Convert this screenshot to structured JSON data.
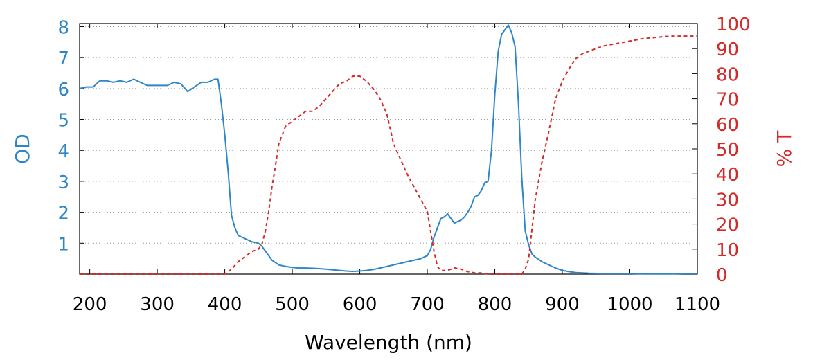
{
  "chart_data": {
    "type": "line",
    "xlabel": "Wavelength (nm)",
    "ylabel_left": "OD",
    "ylabel_right": "% T",
    "xlim": [
      185,
      1100
    ],
    "ylim_left": [
      0,
      8.1
    ],
    "ylim_right": [
      0,
      100
    ],
    "x_ticks": [
      200,
      300,
      400,
      500,
      600,
      700,
      800,
      900,
      1000,
      1100
    ],
    "x_tick_labels": [
      "200",
      "300",
      "400",
      "500",
      "600",
      "700",
      "800",
      "900",
      "1000",
      "1100"
    ],
    "y_left_ticks": [
      1,
      2,
      3,
      4,
      5,
      6,
      7,
      8
    ],
    "y_left_tick_labels": [
      "1",
      "2",
      "3",
      "4",
      "5",
      "6",
      "7",
      "8"
    ],
    "y_right_ticks": [
      0,
      10,
      20,
      30,
      40,
      50,
      60,
      70,
      80,
      90,
      100
    ],
    "y_right_tick_labels": [
      "0",
      "10",
      "20",
      "30",
      "40",
      "50",
      "60",
      "70",
      "80",
      "90",
      "100"
    ],
    "grid": "horizontal dotted",
    "series": [
      {
        "axis": "left",
        "style": "solid",
        "color": "#2e86c8",
        "x": [
          185,
          195,
          205,
          215,
          225,
          235,
          245,
          255,
          265,
          275,
          285,
          295,
          305,
          315,
          325,
          335,
          345,
          355,
          365,
          375,
          385,
          390,
          395,
          400,
          405,
          410,
          415,
          420,
          430,
          440,
          450,
          455,
          460,
          470,
          480,
          490,
          500,
          510,
          520,
          530,
          540,
          550,
          560,
          570,
          580,
          590,
          600,
          610,
          620,
          630,
          640,
          650,
          660,
          670,
          680,
          690,
          700,
          705,
          710,
          715,
          720,
          725,
          730,
          735,
          740,
          745,
          750,
          755,
          760,
          765,
          770,
          775,
          780,
          785,
          790,
          795,
          800,
          805,
          810,
          815,
          820,
          825,
          830,
          835,
          840,
          845,
          850,
          855,
          860,
          870,
          880,
          890,
          900,
          910,
          920,
          930,
          940,
          960,
          980,
          1000,
          1020,
          1040,
          1060,
          1080,
          1100
        ],
        "y": [
          6.0,
          6.05,
          6.05,
          6.25,
          6.25,
          6.2,
          6.25,
          6.2,
          6.3,
          6.2,
          6.1,
          6.1,
          6.1,
          6.1,
          6.2,
          6.15,
          5.9,
          6.05,
          6.2,
          6.2,
          6.3,
          6.3,
          5.5,
          4.5,
          3.3,
          1.9,
          1.5,
          1.25,
          1.15,
          1.05,
          1.0,
          0.9,
          0.75,
          0.45,
          0.3,
          0.25,
          0.22,
          0.2,
          0.2,
          0.19,
          0.18,
          0.16,
          0.14,
          0.12,
          0.1,
          0.09,
          0.1,
          0.12,
          0.15,
          0.2,
          0.25,
          0.3,
          0.35,
          0.4,
          0.45,
          0.5,
          0.6,
          0.8,
          1.2,
          1.5,
          1.8,
          1.85,
          1.95,
          1.8,
          1.65,
          1.7,
          1.75,
          1.85,
          2.0,
          2.2,
          2.5,
          2.55,
          2.7,
          2.95,
          3.0,
          4.0,
          5.8,
          7.2,
          7.75,
          7.9,
          8.05,
          7.8,
          7.35,
          5.5,
          3.1,
          1.4,
          0.95,
          0.65,
          0.55,
          0.4,
          0.3,
          0.2,
          0.12,
          0.08,
          0.05,
          0.04,
          0.03,
          0.02,
          0.02,
          0.02,
          0.01,
          0.01,
          0.01,
          0.02,
          0.02
        ]
      },
      {
        "axis": "right",
        "style": "dashed",
        "color": "#d42a2a",
        "x": [
          185,
          250,
          300,
          350,
          390,
          400,
          410,
          420,
          430,
          440,
          450,
          455,
          460,
          465,
          470,
          475,
          480,
          490,
          500,
          510,
          520,
          530,
          540,
          550,
          560,
          570,
          580,
          590,
          600,
          610,
          620,
          630,
          640,
          650,
          660,
          670,
          680,
          690,
          700,
          705,
          710,
          715,
          720,
          730,
          740,
          750,
          760,
          770,
          780,
          790,
          800,
          810,
          820,
          830,
          840,
          845,
          850,
          855,
          860,
          870,
          880,
          890,
          900,
          910,
          920,
          930,
          940,
          960,
          980,
          1000,
          1020,
          1040,
          1060,
          1080,
          1100
        ],
        "y": [
          0,
          0,
          0,
          0,
          0,
          0,
          2,
          5,
          7,
          9,
          10,
          12,
          17,
          25,
          35,
          43,
          52,
          59,
          61,
          63,
          65,
          65,
          67,
          70,
          73,
          76,
          77,
          79,
          79,
          77,
          74,
          70,
          64,
          52,
          46,
          40,
          35,
          30,
          25,
          17,
          9,
          3,
          1.5,
          1.5,
          2.5,
          2,
          1,
          0.5,
          0.5,
          0,
          0,
          0,
          0,
          0,
          0,
          2,
          6,
          18,
          30,
          45,
          57,
          70,
          77,
          82,
          86,
          88,
          89,
          91,
          92,
          93,
          94,
          94.5,
          95,
          95,
          95
        ]
      }
    ]
  }
}
